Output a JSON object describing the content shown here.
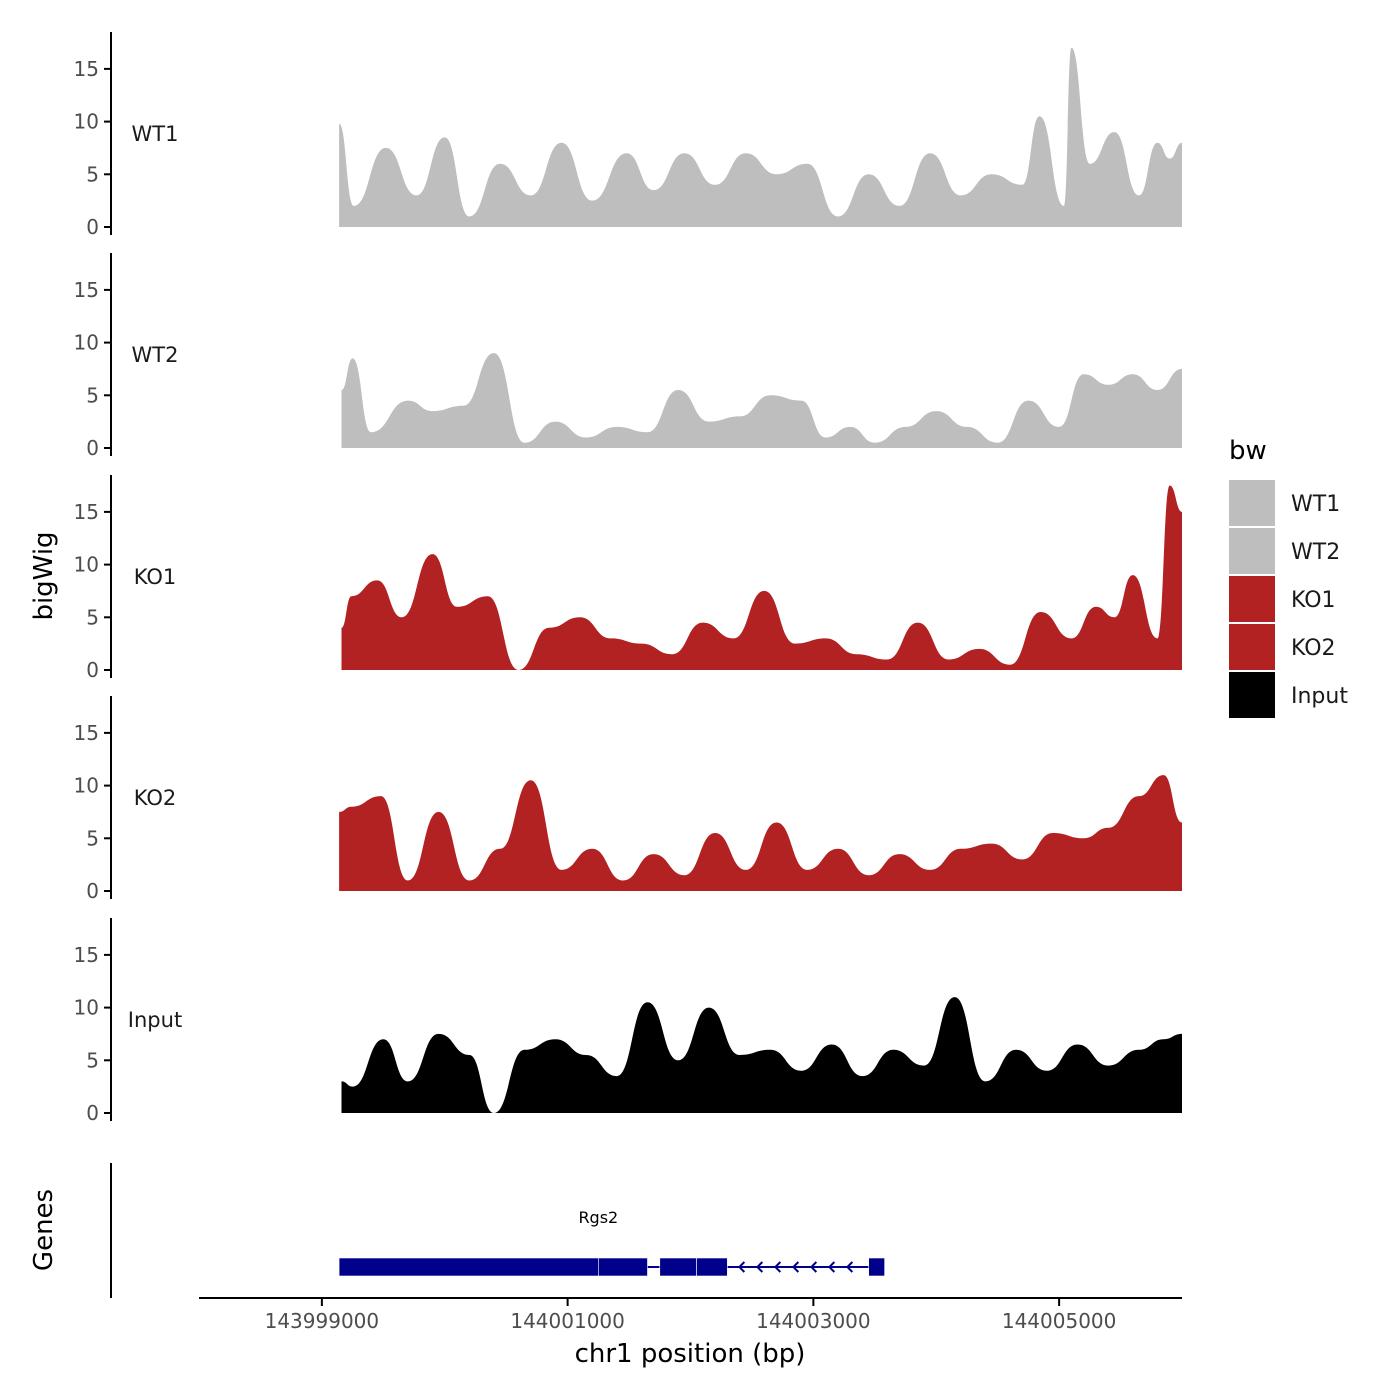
{
  "chart_data": {
    "type": "area",
    "title": "",
    "xlabel": "chr1 position (bp)",
    "ylabel": "bigWig",
    "genes_label": "Genes",
    "xlim": [
      143998000,
      144006000
    ],
    "x_ticks": [
      143999000,
      144001000,
      144003000,
      144005000
    ],
    "x_tick_labels": [
      "143999000",
      "144001000",
      "144003000",
      "144005000"
    ],
    "ylim": [
      0,
      18.5
    ],
    "y_ticks": [
      0,
      5,
      10,
      15
    ],
    "y_tick_labels": [
      "0",
      "5",
      "10",
      "15"
    ],
    "legend": {
      "title": "bw",
      "entries": [
        {
          "label": "WT1",
          "color": "#bebebe"
        },
        {
          "label": "WT2",
          "color": "#bebebe"
        },
        {
          "label": "KO1",
          "color": "#b22222"
        },
        {
          "label": "KO2",
          "color": "#b22222"
        },
        {
          "label": "Input",
          "color": "#000000"
        }
      ]
    },
    "series": [
      {
        "name": "WT1",
        "color": "#bebebe",
        "x": [
          143999140,
          143999260,
          143999520,
          143999770,
          144000000,
          144000200,
          144000450,
          144000700,
          144000950,
          144001200,
          144001480,
          144001700,
          144001950,
          144002200,
          144002450,
          144002700,
          144002950,
          144003200,
          144003450,
          144003700,
          144003950,
          144004200,
          144004450,
          144004700,
          144004840,
          144005040,
          144005100,
          144005250,
          144005450,
          144005650,
          144005800,
          144005900,
          144006000
        ],
        "values": [
          9.8,
          2,
          7.5,
          3,
          8.5,
          1,
          6,
          3,
          8,
          2.5,
          7,
          3.5,
          7,
          4,
          7,
          5,
          6,
          1,
          5,
          2,
          7,
          3,
          5,
          4,
          10.5,
          2,
          17,
          6,
          9,
          3,
          8,
          6.5,
          8
        ]
      },
      {
        "name": "WT2",
        "color": "#bebebe",
        "x": [
          143999160,
          143999250,
          143999400,
          143999700,
          143999900,
          144000150,
          144000400,
          144000650,
          144000900,
          144001150,
          144001400,
          144001650,
          144001900,
          144002150,
          144002400,
          144002650,
          144002900,
          144003100,
          144003300,
          144003500,
          144003750,
          144004000,
          144004250,
          144004500,
          144004750,
          144005000,
          144005200,
          144005400,
          144005600,
          144005800,
          144006000
        ],
        "values": [
          5.5,
          8.5,
          1.5,
          4.5,
          3.5,
          4,
          9,
          0.5,
          2.5,
          1,
          2,
          1.5,
          5.5,
          2.5,
          3,
          5,
          4.5,
          1,
          2,
          0.5,
          2,
          3.5,
          2,
          0.5,
          4.5,
          2,
          7,
          6,
          7,
          5.5,
          7.5
        ]
      },
      {
        "name": "KO1",
        "color": "#b22222",
        "x": [
          143999160,
          143999240,
          143999450,
          143999650,
          143999900,
          144000100,
          144000350,
          144000600,
          144000850,
          144001100,
          144001350,
          144001600,
          144001850,
          144002100,
          144002350,
          144002600,
          144002850,
          144003100,
          144003350,
          144003600,
          144003850,
          144004100,
          144004350,
          144004600,
          144004850,
          144005100,
          144005300,
          144005450,
          144005600,
          144005800,
          144005900,
          144006000
        ],
        "values": [
          4,
          7,
          8.5,
          5,
          11,
          6,
          7,
          0,
          4,
          5,
          3,
          2.5,
          1.5,
          4.5,
          3,
          7.5,
          2.5,
          3,
          1.5,
          1,
          4.5,
          1,
          2,
          0.5,
          5.5,
          3,
          6,
          5,
          9,
          3,
          17.5,
          15
        ]
      },
      {
        "name": "KO2",
        "color": "#b22222",
        "x": [
          143999140,
          143999240,
          143999480,
          143999700,
          143999950,
          144000200,
          144000450,
          144000700,
          144000950,
          144001200,
          144001450,
          144001700,
          144001950,
          144002200,
          144002450,
          144002700,
          144002950,
          144003200,
          144003450,
          144003700,
          144003950,
          144004200,
          144004450,
          144004700,
          144004950,
          144005200,
          144005400,
          144005650,
          144005850,
          144006000
        ],
        "values": [
          7.5,
          8,
          9,
          1,
          7.5,
          1,
          4,
          10.5,
          2,
          4,
          1,
          3.5,
          1.5,
          5.5,
          2,
          6.5,
          2,
          4,
          1.5,
          3.5,
          2,
          4,
          4.5,
          3,
          5.5,
          5,
          6,
          9,
          11,
          6.5
        ]
      },
      {
        "name": "Input",
        "color": "#000000",
        "x": [
          143999160,
          143999250,
          143999500,
          143999700,
          143999950,
          144000200,
          144000400,
          144000650,
          144000900,
          144001150,
          144001400,
          144001650,
          144001900,
          144002150,
          144002400,
          144002650,
          144002900,
          144003150,
          144003400,
          144003650,
          144003900,
          144004150,
          144004400,
          144004650,
          144004900,
          144005150,
          144005400,
          144005650,
          144005850,
          144006000
        ],
        "values": [
          3,
          2.5,
          7,
          3,
          7.5,
          5.5,
          0,
          6,
          7,
          5.5,
          3.5,
          10.5,
          5,
          10,
          5.5,
          6,
          4,
          6.5,
          3.5,
          6,
          4.5,
          11,
          3,
          6,
          4,
          6.5,
          4.5,
          6,
          7,
          7.5
        ]
      }
    ],
    "gene_track": {
      "gene": "Rgs2",
      "strand": "-",
      "start": 143999140,
      "end": 144003580,
      "exons": [
        [
          143999140,
          144001250
        ],
        [
          144001250,
          144001650
        ],
        [
          144001750,
          144002050
        ],
        [
          144002050,
          144002300
        ],
        [
          144003450,
          144003580
        ]
      ]
    }
  }
}
